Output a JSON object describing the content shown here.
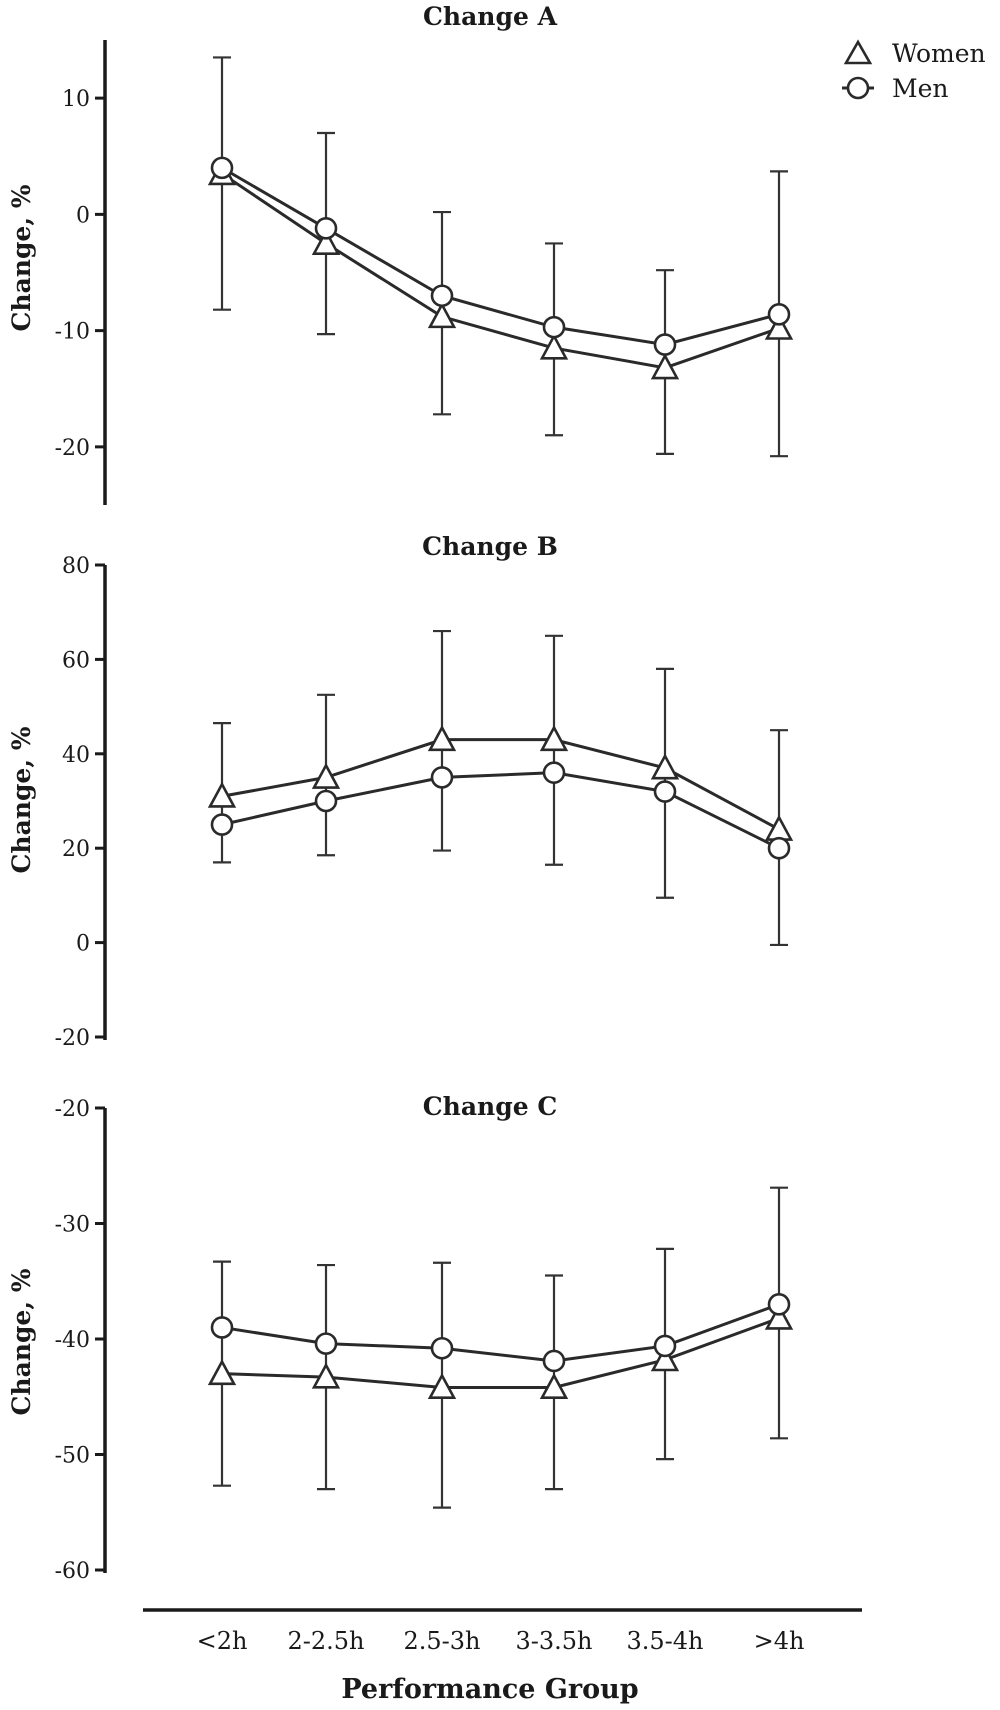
{
  "legend": {
    "items": [
      {
        "label": "Women",
        "marker": "triangle"
      },
      {
        "label": "Men",
        "marker": "circle"
      }
    ]
  },
  "xlabel": "Performance Group",
  "chart_data": [
    {
      "type": "line",
      "title": "Change A",
      "ylabel": "Change, %",
      "ylim": [
        -25,
        15
      ],
      "yticks": [
        10,
        0,
        -10,
        -20
      ],
      "categories": [
        "<2h",
        "2-2.5h",
        "2.5-3h",
        "3-3.5h",
        "3.5-4h",
        ">4h"
      ],
      "series": [
        {
          "name": "Women",
          "marker": "triangle",
          "values": [
            3.5,
            -2.5,
            -8.8,
            -11.5,
            -13.2,
            -9.8
          ]
        },
        {
          "name": "Men",
          "marker": "circle",
          "values": [
            4.0,
            -1.2,
            -7.0,
            -9.7,
            -11.2,
            -8.6
          ]
        }
      ],
      "error_bars": {
        "low": [
          -8.2,
          -10.3,
          -17.2,
          -19.0,
          -20.6,
          -20.8
        ],
        "high": [
          13.5,
          7.0,
          0.2,
          -2.5,
          -4.8,
          3.7
        ]
      }
    },
    {
      "type": "line",
      "title": "Change B",
      "ylabel": "Change, %",
      "ylim": [
        -20,
        80
      ],
      "yticks": [
        80,
        60,
        40,
        20,
        0,
        -20
      ],
      "categories": [
        "<2h",
        "2-2.5h",
        "2.5-3h",
        "3-3.5h",
        "3.5-4h",
        ">4h"
      ],
      "series": [
        {
          "name": "Women",
          "marker": "triangle",
          "values": [
            31,
            35,
            43,
            43,
            37,
            24
          ]
        },
        {
          "name": "Men",
          "marker": "circle",
          "values": [
            25,
            30,
            35,
            36,
            32,
            20
          ]
        }
      ],
      "error_bars": {
        "low": [
          17,
          18.5,
          19.5,
          16.5,
          9.5,
          -0.5
        ],
        "high": [
          46.5,
          52.5,
          66,
          65,
          58,
          45
        ]
      }
    },
    {
      "type": "line",
      "title": "Change C",
      "ylabel": "Change, %",
      "ylim": [
        -60,
        -20
      ],
      "yticks": [
        -20,
        -30,
        -40,
        -50,
        -60
      ],
      "categories": [
        "<2h",
        "2-2.5h",
        "2.5-3h",
        "3-3.5h",
        "3.5-4h",
        ">4h"
      ],
      "series": [
        {
          "name": "Women",
          "marker": "triangle",
          "values": [
            -43.0,
            -43.3,
            -44.2,
            -44.2,
            -41.8,
            -38.2
          ]
        },
        {
          "name": "Men",
          "marker": "circle",
          "values": [
            -39.0,
            -40.4,
            -40.8,
            -41.9,
            -40.6,
            -37.0
          ]
        }
      ],
      "error_bars": {
        "low": [
          -52.7,
          -53.0,
          -54.6,
          -53.0,
          -50.4,
          -48.6
        ],
        "high": [
          -33.3,
          -33.6,
          -33.4,
          -34.5,
          -32.2,
          -26.9
        ]
      }
    }
  ]
}
